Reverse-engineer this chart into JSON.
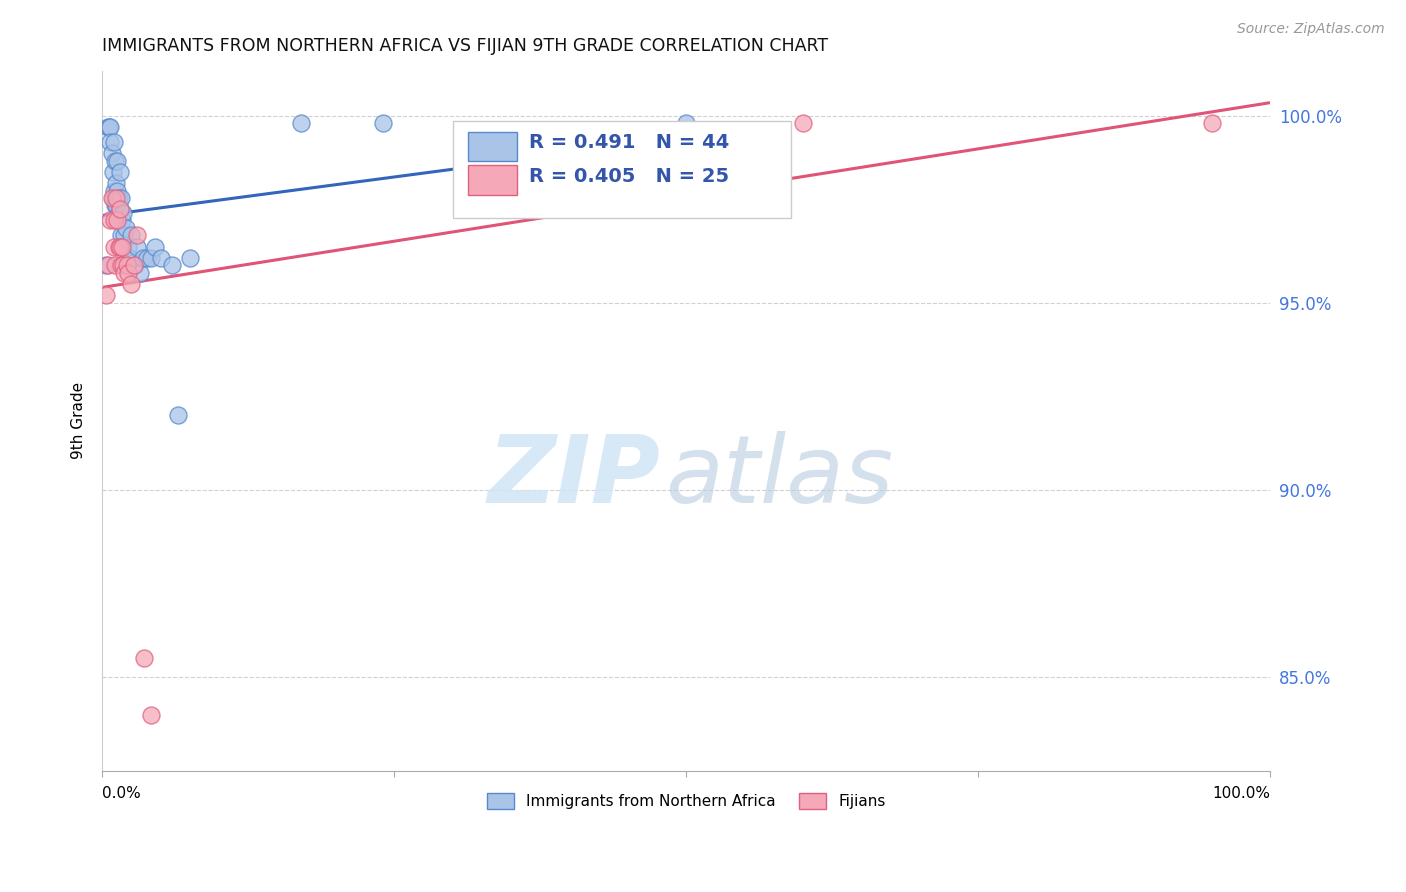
{
  "title": "IMMIGRANTS FROM NORTHERN AFRICA VS FIJIAN 9TH GRADE CORRELATION CHART",
  "source": "Source: ZipAtlas.com",
  "ylabel": "9th Grade",
  "ytick_values": [
    0.85,
    0.9,
    0.95,
    1.0
  ],
  "xlim": [
    0.0,
    1.0
  ],
  "ylim": [
    0.825,
    1.012
  ],
  "legend_blue_label": "Immigrants from Northern Africa",
  "legend_pink_label": "Fijians",
  "r_blue": "R = 0.491",
  "n_blue": "N = 44",
  "r_pink": "R = 0.405",
  "n_pink": "N = 25",
  "blue_fill_color": "#aac4e8",
  "pink_fill_color": "#f4a8b8",
  "blue_edge_color": "#5588cc",
  "pink_edge_color": "#e06080",
  "blue_line_color": "#3366bb",
  "pink_line_color": "#e05575",
  "text_color": "#3355aa",
  "background_color": "#ffffff",
  "grid_color": "#cccccc",
  "blue_scatter_x": [
    0.003,
    0.005,
    0.006,
    0.007,
    0.007,
    0.008,
    0.009,
    0.009,
    0.01,
    0.01,
    0.011,
    0.011,
    0.012,
    0.012,
    0.012,
    0.013,
    0.013,
    0.014,
    0.014,
    0.015,
    0.015,
    0.016,
    0.016,
    0.017,
    0.018,
    0.019,
    0.02,
    0.022,
    0.023,
    0.025,
    0.028,
    0.03,
    0.032,
    0.035,
    0.038,
    0.042,
    0.045,
    0.05,
    0.06,
    0.065,
    0.075,
    0.17,
    0.24,
    0.5
  ],
  "blue_scatter_y": [
    0.96,
    0.997,
    0.997,
    0.997,
    0.993,
    0.99,
    0.985,
    0.978,
    0.993,
    0.98,
    0.988,
    0.976,
    0.982,
    0.976,
    0.973,
    0.988,
    0.98,
    0.978,
    0.972,
    0.985,
    0.975,
    0.978,
    0.968,
    0.972,
    0.974,
    0.968,
    0.97,
    0.965,
    0.962,
    0.968,
    0.96,
    0.965,
    0.958,
    0.962,
    0.962,
    0.962,
    0.965,
    0.962,
    0.96,
    0.92,
    0.962,
    0.998,
    0.998,
    0.998
  ],
  "pink_scatter_x": [
    0.003,
    0.005,
    0.007,
    0.008,
    0.01,
    0.01,
    0.011,
    0.012,
    0.013,
    0.014,
    0.015,
    0.015,
    0.016,
    0.017,
    0.018,
    0.019,
    0.021,
    0.022,
    0.025,
    0.027,
    0.03,
    0.036,
    0.042,
    0.6,
    0.95
  ],
  "pink_scatter_y": [
    0.952,
    0.96,
    0.972,
    0.978,
    0.972,
    0.965,
    0.96,
    0.978,
    0.972,
    0.965,
    0.975,
    0.965,
    0.96,
    0.965,
    0.96,
    0.958,
    0.96,
    0.958,
    0.955,
    0.96,
    0.968,
    0.855,
    0.84,
    0.998,
    0.998
  ],
  "watermark_zip_color": "#d0e4f5",
  "watermark_atlas_color": "#b8cce0"
}
